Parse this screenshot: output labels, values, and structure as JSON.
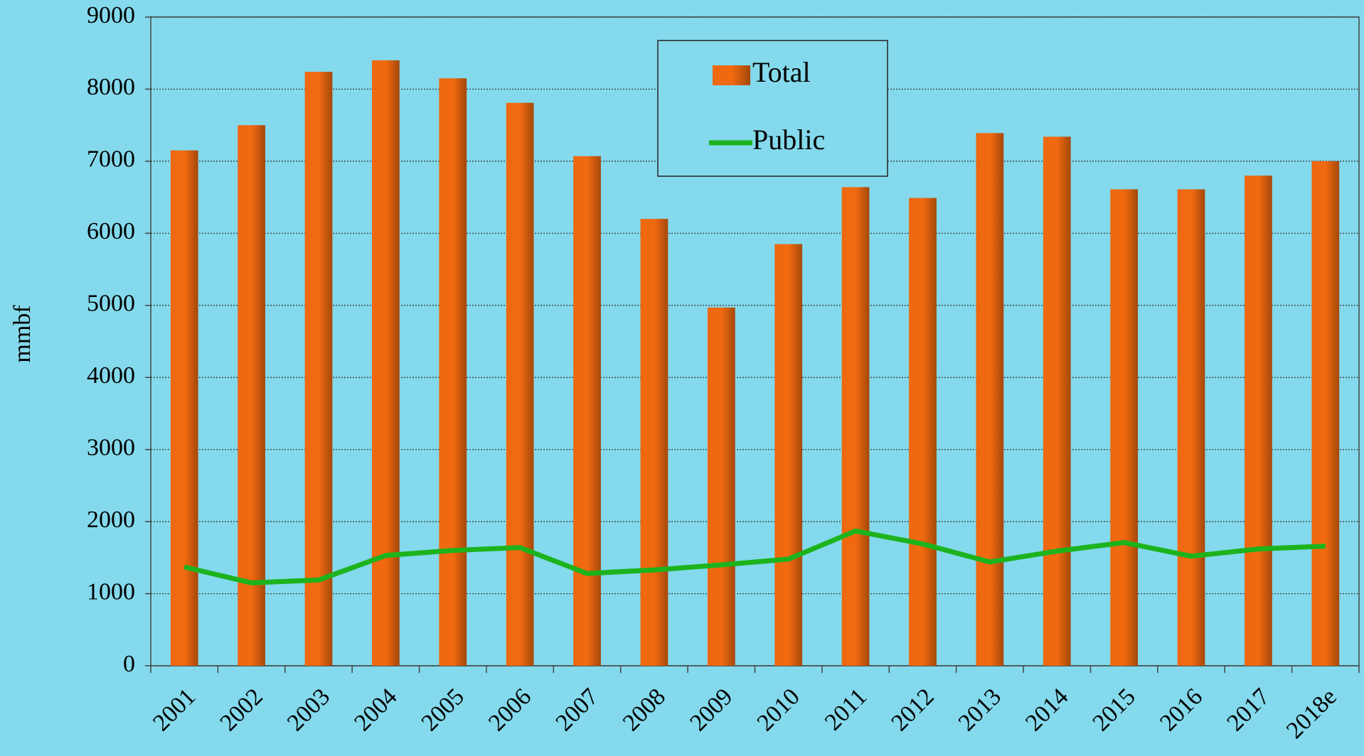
{
  "chart_data": {
    "type": "bar",
    "ylabel": "mmbf",
    "categories": [
      "2001",
      "2002",
      "2003",
      "2004",
      "2005",
      "2006",
      "2007",
      "2008",
      "2009",
      "2010",
      "2011",
      "2012",
      "2013",
      "2014",
      "2015",
      "2016",
      "2017",
      "2018e"
    ],
    "series": [
      {
        "name": "Total",
        "type": "bar",
        "color": "#f26a10",
        "values": [
          7150,
          7500,
          8240,
          8400,
          8150,
          7810,
          7070,
          6200,
          4970,
          5850,
          6640,
          6490,
          7390,
          7340,
          6610,
          6610,
          6800,
          7000
        ]
      },
      {
        "name": "Public",
        "type": "line",
        "color": "#1db31d",
        "values": [
          1370,
          1150,
          1190,
          1530,
          1600,
          1640,
          1280,
          1330,
          1400,
          1480,
          1870,
          1690,
          1440,
          1590,
          1710,
          1520,
          1620,
          1660
        ]
      }
    ],
    "ylim": [
      0,
      9000
    ],
    "yticks": [
      0,
      1000,
      2000,
      3000,
      4000,
      5000,
      6000,
      7000,
      8000,
      9000
    ],
    "grid": true,
    "legend": "top"
  }
}
